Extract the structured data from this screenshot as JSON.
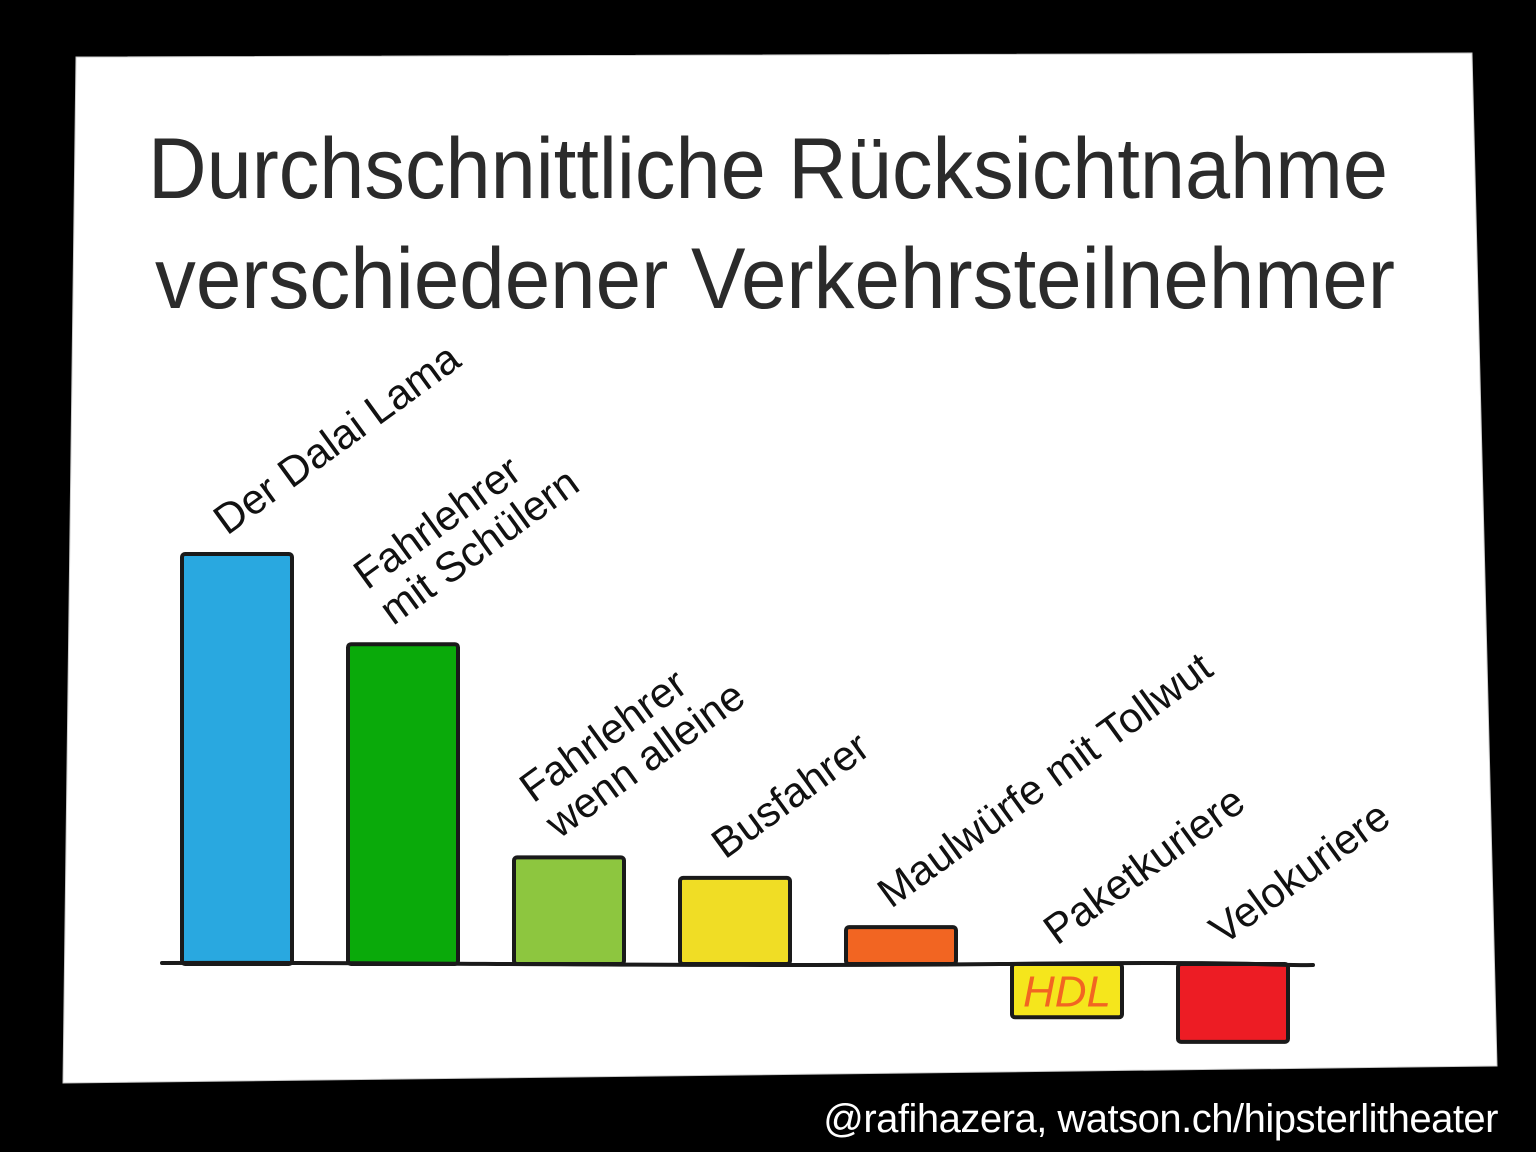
{
  "chart_data": {
    "type": "bar",
    "title": "Durchschnittliche Rücksichtnahme verschiedener Verkehrsteilnehmer",
    "title_lines": [
      "Durchschnittliche Rücksichtnahme",
      "verschiedener Verkehrsteilnehmer"
    ],
    "categories": [
      [
        "Der Dalai Lama"
      ],
      [
        "Fahrlehrer",
        "mit Schülern"
      ],
      [
        "Fahrlehrer",
        "wenn alleine"
      ],
      [
        "Busfahrer"
      ],
      [
        "Maulwürfe mit Tollwut"
      ],
      [
        "Paketkuriere"
      ],
      [
        "Velokuriere"
      ]
    ],
    "values": [
      100,
      78,
      26,
      21,
      9,
      -13,
      -19
    ],
    "colors": [
      "#29a8e0",
      "#0aaa0a",
      "#8dc63f",
      "#f0dd25",
      "#f26522",
      "#f5e61c",
      "#ed1c24"
    ],
    "bar_annotations": [
      null,
      null,
      null,
      null,
      null,
      "HDL",
      null
    ],
    "annotation_color": "#f26522",
    "xlabel": "",
    "ylabel": "",
    "ylim": [
      -20,
      100
    ],
    "grid": false,
    "legend": "none"
  },
  "credit": "@rafihazera, watson.ch/hipsterlitheater"
}
